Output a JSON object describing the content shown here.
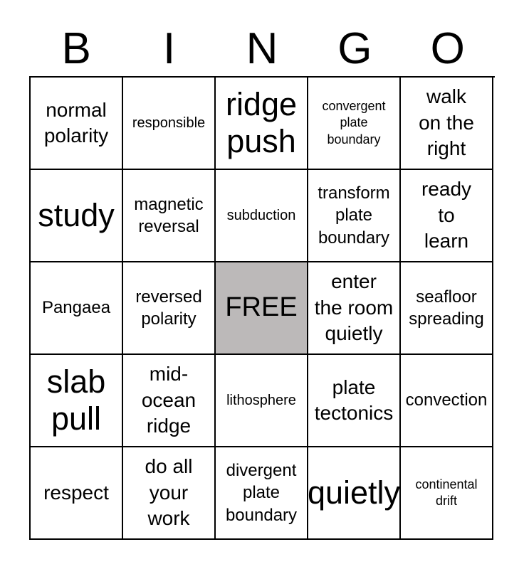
{
  "title": {
    "letters": [
      "B",
      "I",
      "N",
      "G",
      "O"
    ]
  },
  "card": {
    "rows": 5,
    "cols": 5,
    "border_color": "#000000",
    "free_color": "#bcb9b9",
    "cells": [
      {
        "text": "normal\npolarity",
        "size": "lg",
        "free": false
      },
      {
        "text": "responsible",
        "size": "sm",
        "free": false
      },
      {
        "text": "ridge\npush",
        "size": "huge",
        "free": false
      },
      {
        "text": "convergent\nplate\nboundary",
        "size": "xs",
        "free": false
      },
      {
        "text": "walk\non the\nright",
        "size": "lg",
        "free": false
      },
      {
        "text": "study",
        "size": "huge",
        "free": false
      },
      {
        "text": "magnetic\nreversal",
        "size": "md",
        "free": false
      },
      {
        "text": "subduction",
        "size": "sm",
        "free": false
      },
      {
        "text": "transform\nplate\nboundary",
        "size": "md",
        "free": false
      },
      {
        "text": "ready\nto\nlearn",
        "size": "lg",
        "free": false
      },
      {
        "text": "Pangaea",
        "size": "md",
        "free": false
      },
      {
        "text": "reversed\npolarity",
        "size": "md",
        "free": false
      },
      {
        "text": "FREE",
        "size": "big",
        "free": true
      },
      {
        "text": "enter\nthe room\nquietly",
        "size": "lg",
        "free": false
      },
      {
        "text": "seafloor\nspreading",
        "size": "md",
        "free": false
      },
      {
        "text": "slab\npull",
        "size": "huge",
        "free": false
      },
      {
        "text": "mid-\nocean\nridge",
        "size": "lg",
        "free": false
      },
      {
        "text": "lithosphere",
        "size": "sm",
        "free": false
      },
      {
        "text": "plate\ntectonics",
        "size": "lg",
        "free": false
      },
      {
        "text": "convection",
        "size": "md",
        "free": false
      },
      {
        "text": "respect",
        "size": "lg",
        "free": false
      },
      {
        "text": "do all\nyour\nwork",
        "size": "lg",
        "free": false
      },
      {
        "text": "divergent\nplate\nboundary",
        "size": "md",
        "free": false
      },
      {
        "text": "quietly",
        "size": "huge",
        "free": false
      },
      {
        "text": "continental\ndrift",
        "size": "xs",
        "free": false
      }
    ]
  }
}
